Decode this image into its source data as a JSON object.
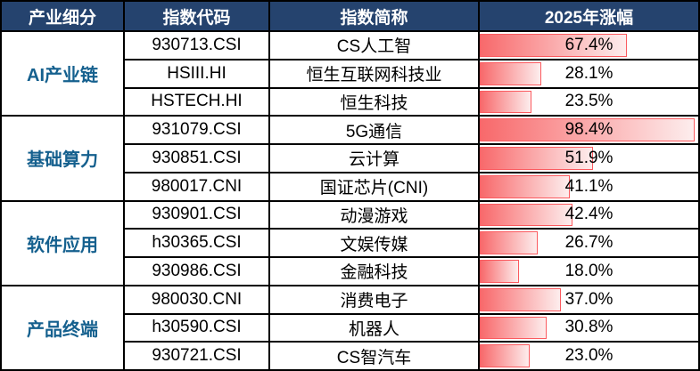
{
  "table": {
    "headers": {
      "category": "产业细分",
      "code": "指数代码",
      "name": "指数简称",
      "gain": "2025年涨幅"
    },
    "groups": [
      {
        "category": "AI产业链",
        "rows": [
          {
            "code": "930713.CSI",
            "name": "CS人工智",
            "value": 67.4,
            "label": "67.4%"
          },
          {
            "code": "HSIII.HI",
            "name": "恒生互联网科技业",
            "value": 28.1,
            "label": "28.1%"
          },
          {
            "code": "HSTECH.HI",
            "name": "恒生科技",
            "value": 23.5,
            "label": "23.5%"
          }
        ]
      },
      {
        "category": "基础算力",
        "rows": [
          {
            "code": "931079.CSI",
            "name": "5G通信",
            "value": 98.4,
            "label": "98.4%"
          },
          {
            "code": "930851.CSI",
            "name": "云计算",
            "value": 51.9,
            "label": "51.9%"
          },
          {
            "code": "980017.CNI",
            "name": "国证芯片(CNI)",
            "value": 41.1,
            "label": "41.1%"
          }
        ]
      },
      {
        "category": "软件应用",
        "rows": [
          {
            "code": "930901.CSI",
            "name": "动漫游戏",
            "value": 42.4,
            "label": "42.4%"
          },
          {
            "code": "h30365.CSI",
            "name": "文娱传媒",
            "value": 26.7,
            "label": "26.7%"
          },
          {
            "code": "930986.CSI",
            "name": "金融科技",
            "value": 18.0,
            "label": "18.0%"
          }
        ]
      },
      {
        "category": "产品终端",
        "rows": [
          {
            "code": "980030.CNI",
            "name": "消费电子",
            "value": 37.0,
            "label": "37.0%"
          },
          {
            "code": "h30590.CSI",
            "name": "机器人",
            "value": 30.8,
            "label": "30.8%"
          },
          {
            "code": "930721.CSI",
            "name": "CS智汽车",
            "value": 23.0,
            "label": "23.0%"
          }
        ]
      }
    ]
  },
  "colors": {
    "header_bg": "#25436E",
    "header_text": "#FFFFFF",
    "category_text": "#15608E",
    "bar_fill_start": "#F8696B",
    "bar_fill_end": "#FDEDED",
    "bar_border": "#FB5A5F",
    "grid": "#000000"
  },
  "chart_data": {
    "type": "bar",
    "title": "2025年涨幅",
    "orientation": "horizontal",
    "value_format": "percent",
    "xlim": [
      0,
      100
    ],
    "grid": false,
    "legend": "none",
    "category_groups": [
      {
        "group": "AI产业链",
        "members": [
          "CS人工智",
          "恒生互联网科技业",
          "恒生科技"
        ]
      },
      {
        "group": "基础算力",
        "members": [
          "5G通信",
          "云计算",
          "国证芯片(CNI)"
        ]
      },
      {
        "group": "软件应用",
        "members": [
          "动漫游戏",
          "文娱传媒",
          "金融科技"
        ]
      },
      {
        "group": "产品终端",
        "members": [
          "消费电子",
          "机器人",
          "CS智汽车"
        ]
      }
    ],
    "categories": [
      "CS人工智",
      "恒生互联网科技业",
      "恒生科技",
      "5G通信",
      "云计算",
      "国证芯片(CNI)",
      "动漫游戏",
      "文娱传媒",
      "金融科技",
      "消费电子",
      "机器人",
      "CS智汽车"
    ],
    "codes": [
      "930713.CSI",
      "HSIII.HI",
      "HSTECH.HI",
      "931079.CSI",
      "930851.CSI",
      "980017.CNI",
      "930901.CSI",
      "h30365.CSI",
      "930986.CSI",
      "980030.CNI",
      "h30590.CSI",
      "930721.CSI"
    ],
    "values": [
      67.4,
      28.1,
      23.5,
      98.4,
      51.9,
      41.1,
      42.4,
      26.7,
      18.0,
      37.0,
      30.8,
      23.0
    ]
  }
}
